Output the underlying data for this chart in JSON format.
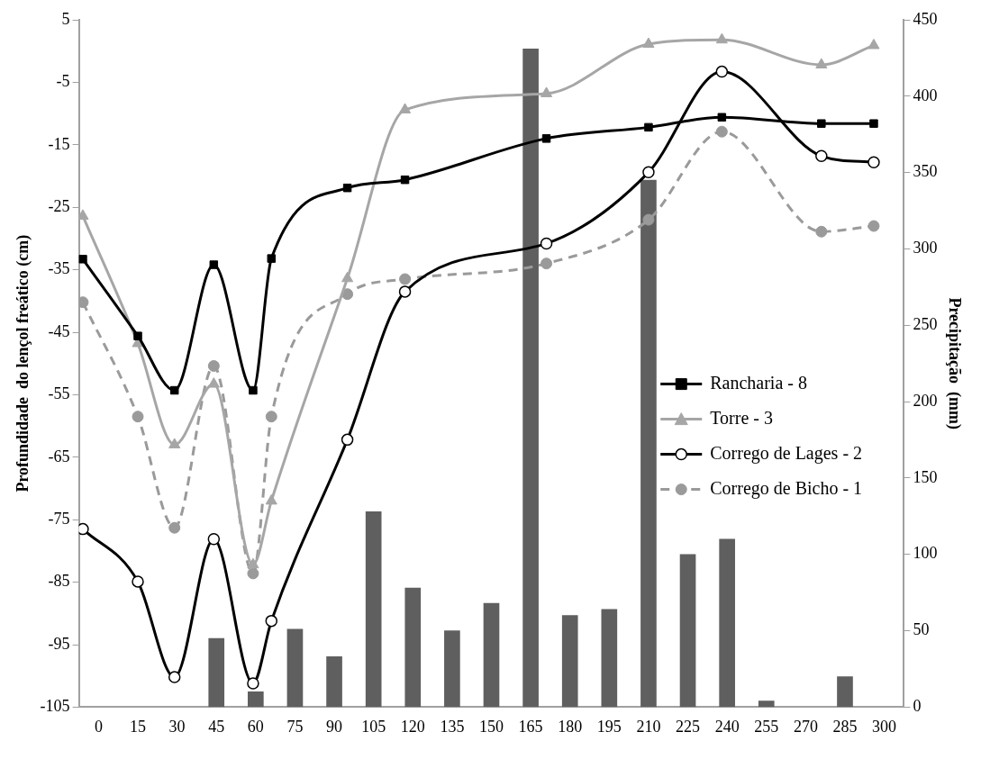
{
  "chart_data": {
    "type": "line",
    "ylabel": "Profundidade  do lençol freático (cm)",
    "y2label": "Precipitação  (mm)",
    "xlim": [
      -7.5,
      307.5
    ],
    "xticks": [
      0,
      15,
      30,
      45,
      60,
      75,
      90,
      105,
      120,
      135,
      150,
      165,
      180,
      195,
      210,
      225,
      240,
      255,
      270,
      285,
      300
    ],
    "ylim": [
      -105,
      5
    ],
    "yticks": [
      -105,
      -95,
      -85,
      -75,
      -65,
      -55,
      -45,
      -35,
      -25,
      -15,
      -5,
      5
    ],
    "y2lim": [
      0,
      450
    ],
    "y2ticks": [
      0,
      50,
      100,
      150,
      200,
      250,
      300,
      350,
      400,
      450
    ],
    "grid": false,
    "legend": "right",
    "series": [
      {
        "type": "bar",
        "axis": "y2",
        "color": "#5f5f5f",
        "x": [
          45,
          60,
          75,
          90,
          105,
          120,
          135,
          150,
          165,
          180,
          195,
          210,
          225,
          240,
          255,
          285
        ],
        "values": [
          45,
          10,
          51,
          33,
          128,
          78,
          50,
          68,
          431,
          60,
          64,
          345,
          100,
          110,
          4,
          20
        ]
      },
      {
        "name": "Rancharia - 8",
        "color": "#000000",
        "marker": "square",
        "line_style": "solid",
        "x": [
          -6,
          15,
          29,
          44,
          59,
          66,
          95,
          117,
          171,
          210,
          238,
          276,
          296
        ],
        "values": [
          -33.3,
          -45.6,
          -54.3,
          -34.2,
          -54.3,
          -33.2,
          -21.9,
          -20.6,
          -14.0,
          -12.2,
          -10.6,
          -11.6,
          -11.6
        ]
      },
      {
        "name": "Torre - 3",
        "color": "#a6a6a6",
        "marker": "triangle",
        "line_style": "solid",
        "x": [
          -6,
          15,
          29,
          44,
          59,
          66,
          95,
          117,
          171,
          210,
          238,
          276,
          296
        ],
        "values": [
          -26.4,
          -46.8,
          -63.0,
          -53.3,
          -82.2,
          -72.0,
          -36.4,
          -9.4,
          -6.8,
          1.1,
          1.8,
          -2.2,
          0.9
        ]
      },
      {
        "name": "Corrego de Lages - 2",
        "color": "#000000",
        "marker": "circle",
        "line_style": "solid",
        "x": [
          -6,
          15,
          29,
          44,
          59,
          66,
          95,
          117,
          171,
          210,
          238,
          276,
          296
        ],
        "values": [
          -76.5,
          -84.9,
          -100.2,
          -78.1,
          -101.2,
          -91.2,
          -62.2,
          -38.5,
          -30.8,
          -19.4,
          -3.3,
          -16.8,
          -17.8
        ]
      },
      {
        "name": "Corrego de Bicho - 1",
        "color": "#9a9a9a",
        "marker": "circle",
        "line_style": "dashed",
        "x": [
          -6,
          15,
          29,
          44,
          59,
          66,
          95,
          117,
          171,
          210,
          238,
          276,
          296
        ],
        "values": [
          -40.2,
          -58.5,
          -76.3,
          -50.4,
          -83.6,
          -58.5,
          -38.9,
          -36.5,
          -34.0,
          -27.0,
          -12.9,
          -28.9,
          -28.0
        ]
      }
    ]
  }
}
